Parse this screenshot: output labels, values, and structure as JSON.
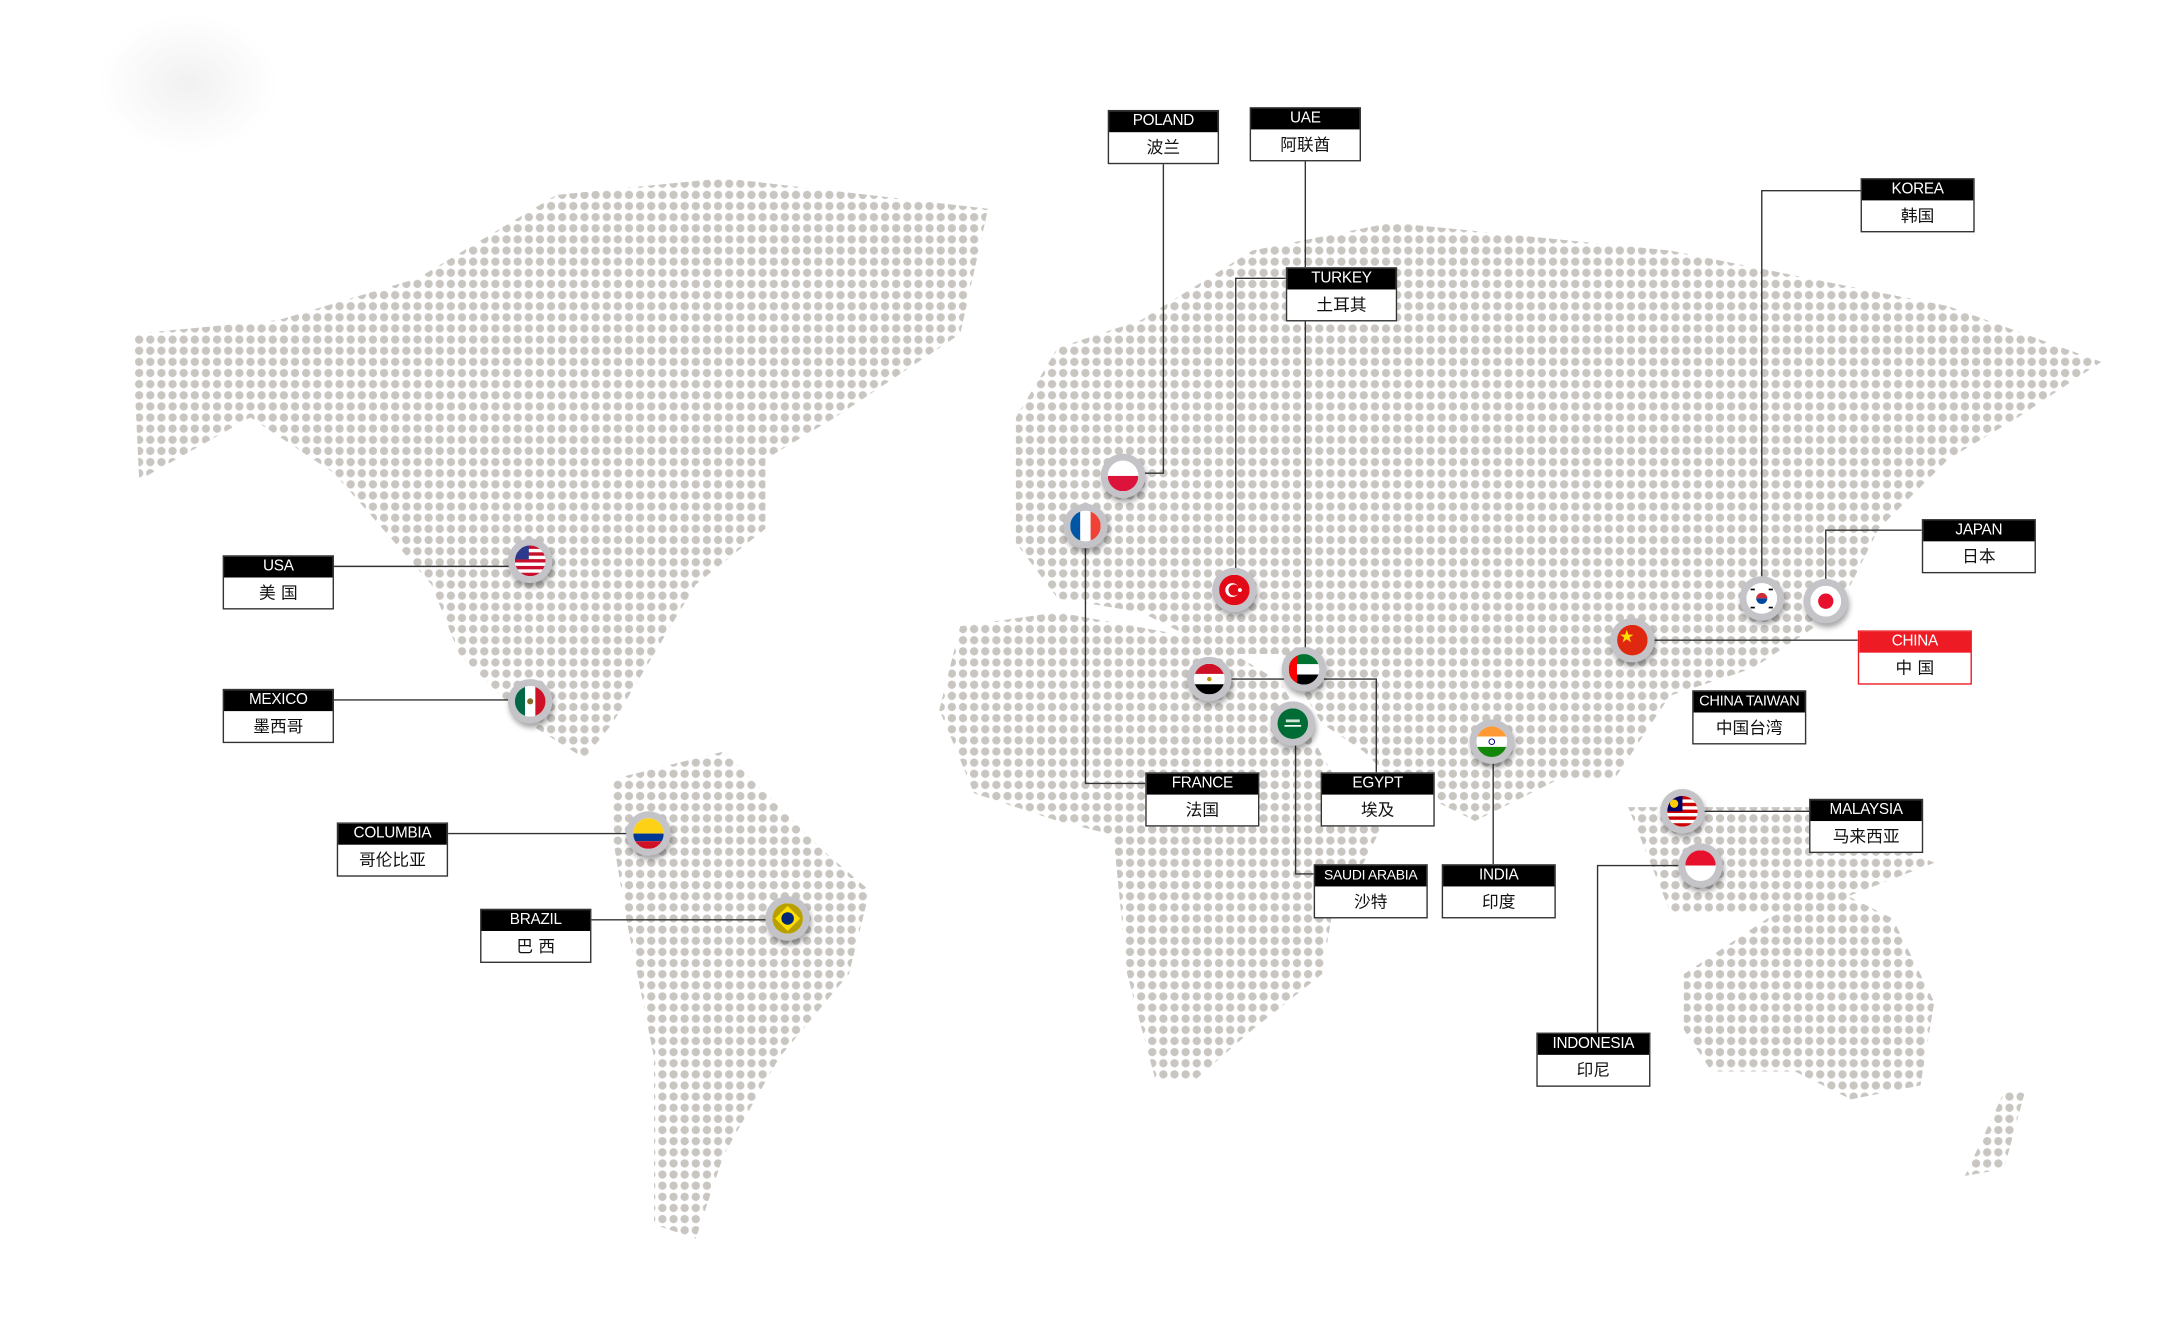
{
  "colors": {
    "dot": "#c9c6c2",
    "label_header": "#000000",
    "highlight": "#ed1c24",
    "connector": "#333333"
  },
  "markers": {
    "usa": {
      "en": "USA",
      "cn": "美 国",
      "icon": "usa-flag-icon"
    },
    "mexico": {
      "en": "MEXICO",
      "cn": "墨西哥",
      "icon": "mexico-flag-icon"
    },
    "columbia": {
      "en": "COLUMBIA",
      "cn": "哥伦比亚",
      "icon": "colombia-flag-icon"
    },
    "brazil": {
      "en": "BRAZIL",
      "cn": "巴 西",
      "icon": "brazil-flag-icon"
    },
    "poland": {
      "en": "POLAND",
      "cn": "波兰",
      "icon": "poland-flag-icon"
    },
    "uae": {
      "en": "UAE",
      "cn": "阿联酋",
      "icon": "uae-flag-icon"
    },
    "turkey": {
      "en": "TURKEY",
      "cn": "土耳其",
      "icon": "turkey-flag-icon"
    },
    "france": {
      "en": "FRANCE",
      "cn": "法国",
      "icon": "france-flag-icon"
    },
    "egypt": {
      "en": "EGYPT",
      "cn": "埃及",
      "icon": "egypt-flag-icon"
    },
    "saudi": {
      "en": "SAUDI ARABIA",
      "cn": "沙特",
      "icon": "saudi-flag-icon"
    },
    "india": {
      "en": "INDIA",
      "cn": "印度",
      "icon": "india-flag-icon"
    },
    "china": {
      "en": "CHINA",
      "cn": "中 国",
      "icon": "china-flag-icon",
      "highlighted": true
    },
    "taiwan": {
      "en": "CHINA TAIWAN",
      "cn": "中国台湾"
    },
    "korea": {
      "en": "KOREA",
      "cn": "韩国",
      "icon": "korea-flag-icon"
    },
    "japan": {
      "en": "JAPAN",
      "cn": "日本",
      "icon": "japan-flag-icon"
    },
    "malaysia": {
      "en": "MALAYSIA",
      "cn": "马来西亚",
      "icon": "malaysia-flag-icon"
    },
    "indonesia": {
      "en": "INDONESIA",
      "cn": "印尼",
      "icon": "indonesia-flag-icon"
    }
  }
}
